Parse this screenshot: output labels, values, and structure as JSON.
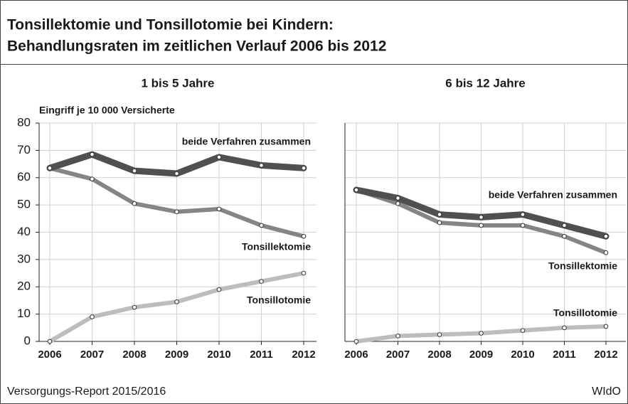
{
  "title": [
    "Tonsillektomie und Tonsillotomie bei Kindern:",
    "Behandlungsraten im zeitlichen Verlauf 2006 bis 2012"
  ],
  "source": "Versorgungs-Report 2015/2016",
  "publisher": "WIdO",
  "chart_data": [
    {
      "type": "line",
      "title": "1 bis 5 Jahre",
      "ylabel": "Eingriff je 10 000 Versicherte",
      "categories": [
        "2006",
        "2007",
        "2008",
        "2009",
        "2010",
        "2011",
        "2012"
      ],
      "ylim": [
        0,
        80
      ],
      "yticks": [
        0,
        10,
        20,
        30,
        40,
        50,
        60,
        70,
        80
      ],
      "grid": true,
      "ytick_labels": true,
      "series": [
        {
          "name": "beide Verfahren zusammen",
          "color": "#505050",
          "values": [
            63.5,
            68.5,
            62.5,
            61.5,
            67.5,
            64.5,
            63.5
          ]
        },
        {
          "name": "Tonsillektomie",
          "color": "#858585",
          "values": [
            63.5,
            59.5,
            50.5,
            47.5,
            48.5,
            42.5,
            38.5
          ]
        },
        {
          "name": "Tonsillotomie",
          "color": "#bdbdbd",
          "values": [
            0,
            9,
            12.5,
            14.5,
            19,
            22,
            25
          ]
        }
      ]
    },
    {
      "type": "line",
      "title": "6 bis 12 Jahre",
      "categories": [
        "2006",
        "2007",
        "2008",
        "2009",
        "2010",
        "2011",
        "2012"
      ],
      "ylim": [
        0,
        80
      ],
      "yticks": [
        0,
        10,
        20,
        30,
        40,
        50,
        60,
        70,
        80
      ],
      "grid": true,
      "ytick_labels": false,
      "series": [
        {
          "name": "beide Verfahren zusammen",
          "color": "#505050",
          "values": [
            55.5,
            52.5,
            46.5,
            45.5,
            46.5,
            42.5,
            38.5
          ]
        },
        {
          "name": "Tonsillektomie",
          "color": "#858585",
          "values": [
            55.5,
            50.5,
            43.5,
            42.5,
            42.5,
            38.5,
            32.5
          ]
        },
        {
          "name": "Tonsillotomie",
          "color": "#bdbdbd",
          "values": [
            0,
            2,
            2.5,
            3,
            4,
            5,
            5.5
          ]
        }
      ]
    }
  ]
}
